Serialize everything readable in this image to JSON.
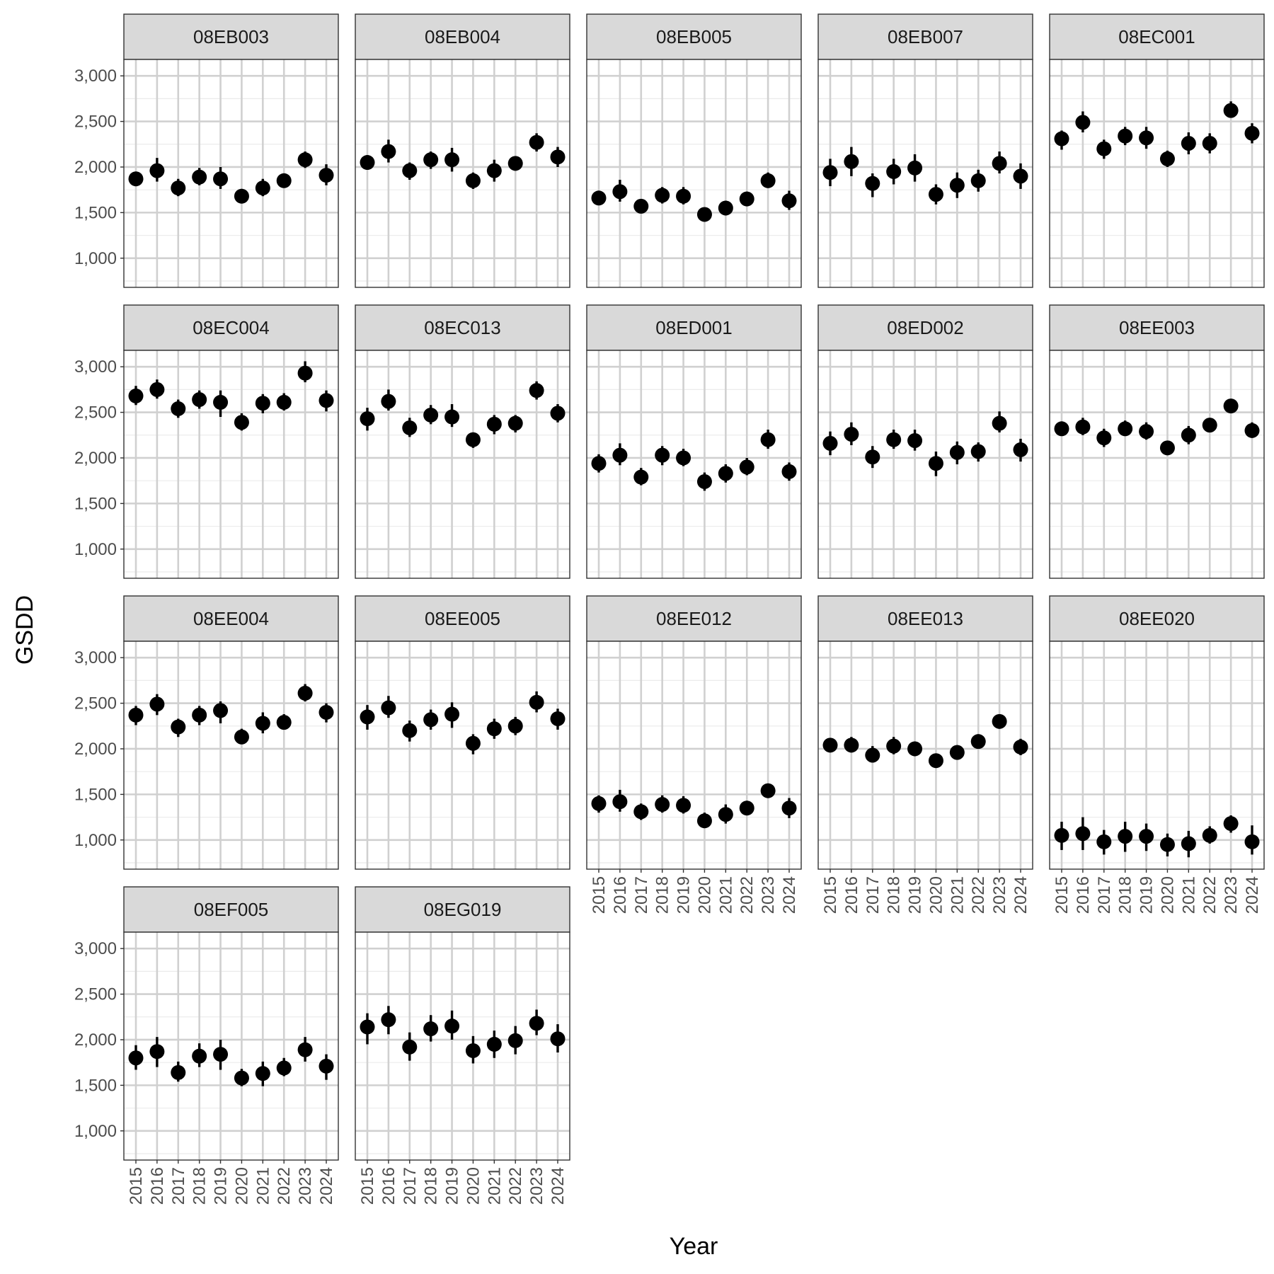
{
  "chart_data": {
    "type": "scatter",
    "xlabel": "Year",
    "ylabel": "GSDD",
    "x": [
      "2015",
      "2016",
      "2017",
      "2018",
      "2019",
      "2020",
      "2021",
      "2022",
      "2023",
      "2024"
    ],
    "y_ticks": [
      1000,
      1500,
      2000,
      2500,
      3000
    ],
    "y_tick_labels": [
      "1,000",
      "1,500",
      "2,000",
      "2,500",
      "3,000"
    ],
    "ylim": [
      680,
      3180
    ],
    "grid": true,
    "marker_color": "#000000",
    "panels": [
      {
        "name": "08EB003",
        "values": [
          1870,
          1960,
          1770,
          1890,
          1870,
          1680,
          1770,
          1850,
          2080,
          1910
        ],
        "lower": [
          1790,
          1840,
          1680,
          1800,
          1760,
          1600,
          1680,
          1780,
          1990,
          1800
        ],
        "upper": [
          1950,
          2100,
          1870,
          1990,
          2000,
          1760,
          1870,
          1930,
          2170,
          2030
        ]
      },
      {
        "name": "08EB004",
        "values": [
          2050,
          2170,
          1960,
          2080,
          2080,
          1850,
          1960,
          2040,
          2270,
          2110
        ],
        "lower": [
          1970,
          2050,
          1860,
          1980,
          1950,
          1760,
          1840,
          1960,
          2170,
          2000
        ],
        "upper": [
          2130,
          2300,
          2050,
          2170,
          2210,
          1940,
          2080,
          2120,
          2370,
          2220
        ]
      },
      {
        "name": "08EB005",
        "values": [
          1660,
          1730,
          1570,
          1690,
          1680,
          1480,
          1550,
          1650,
          1850,
          1630
        ],
        "lower": [
          1580,
          1620,
          1500,
          1600,
          1590,
          1420,
          1470,
          1580,
          1770,
          1530
        ],
        "upper": [
          1740,
          1860,
          1650,
          1780,
          1780,
          1550,
          1630,
          1730,
          1940,
          1740
        ]
      },
      {
        "name": "08EB007",
        "values": [
          1940,
          2060,
          1820,
          1950,
          1990,
          1700,
          1800,
          1850,
          2040,
          1900
        ],
        "lower": [
          1790,
          1900,
          1670,
          1810,
          1840,
          1590,
          1660,
          1730,
          1930,
          1760
        ],
        "upper": [
          2090,
          2220,
          1930,
          2090,
          2140,
          1810,
          1940,
          1970,
          2170,
          2040
        ]
      },
      {
        "name": "08EC001",
        "values": [
          2310,
          2490,
          2200,
          2340,
          2320,
          2090,
          2260,
          2260,
          2620,
          2370
        ],
        "lower": [
          2190,
          2380,
          2090,
          2240,
          2200,
          2000,
          2140,
          2150,
          2540,
          2260
        ],
        "upper": [
          2400,
          2610,
          2300,
          2440,
          2440,
          2180,
          2380,
          2370,
          2720,
          2480
        ]
      },
      {
        "name": "08EC004",
        "values": [
          2680,
          2750,
          2540,
          2640,
          2610,
          2390,
          2600,
          2610,
          2930,
          2630
        ],
        "lower": [
          2580,
          2650,
          2440,
          2540,
          2450,
          2300,
          2490,
          2520,
          2830,
          2510
        ],
        "upper": [
          2790,
          2860,
          2640,
          2740,
          2740,
          2490,
          2700,
          2710,
          3060,
          2740
        ]
      },
      {
        "name": "08EC013",
        "values": [
          2430,
          2620,
          2330,
          2470,
          2450,
          2200,
          2370,
          2380,
          2740,
          2490
        ],
        "lower": [
          2300,
          2520,
          2230,
          2370,
          2340,
          2110,
          2260,
          2280,
          2640,
          2390
        ],
        "upper": [
          2550,
          2750,
          2440,
          2580,
          2590,
          2280,
          2470,
          2470,
          2840,
          2590
        ]
      },
      {
        "name": "08ED001",
        "values": [
          1940,
          2030,
          1790,
          2030,
          2000,
          1740,
          1830,
          1900,
          2200,
          1850
        ],
        "lower": [
          1840,
          1920,
          1700,
          1920,
          1910,
          1640,
          1730,
          1810,
          2100,
          1750
        ],
        "upper": [
          2040,
          2160,
          1890,
          2130,
          2100,
          1840,
          1930,
          2000,
          2310,
          1950
        ]
      },
      {
        "name": "08ED002",
        "values": [
          2160,
          2260,
          2010,
          2200,
          2190,
          1940,
          2060,
          2070,
          2380,
          2090
        ],
        "lower": [
          2030,
          2140,
          1890,
          2100,
          2080,
          1800,
          1930,
          1960,
          2280,
          1960
        ],
        "upper": [
          2290,
          2390,
          2130,
          2310,
          2310,
          2070,
          2180,
          2170,
          2510,
          2210
        ]
      },
      {
        "name": "08EE003",
        "values": [
          2320,
          2340,
          2220,
          2320,
          2290,
          2110,
          2250,
          2360,
          2570,
          2300
        ],
        "lower": [
          2250,
          2250,
          2120,
          2240,
          2200,
          2040,
          2150,
          2280,
          2500,
          2220
        ],
        "upper": [
          2400,
          2440,
          2320,
          2410,
          2390,
          2180,
          2350,
          2430,
          2630,
          2390
        ]
      },
      {
        "name": "08EE004",
        "values": [
          2370,
          2490,
          2240,
          2370,
          2420,
          2130,
          2280,
          2290,
          2610,
          2400
        ],
        "lower": [
          2260,
          2370,
          2130,
          2260,
          2280,
          2050,
          2170,
          2210,
          2520,
          2290
        ],
        "upper": [
          2470,
          2600,
          2330,
          2470,
          2520,
          2220,
          2400,
          2380,
          2710,
          2500
        ]
      },
      {
        "name": "08EE005",
        "values": [
          2350,
          2450,
          2200,
          2320,
          2380,
          2060,
          2220,
          2250,
          2510,
          2330
        ],
        "lower": [
          2210,
          2340,
          2080,
          2210,
          2230,
          1940,
          2110,
          2150,
          2400,
          2210
        ],
        "upper": [
          2480,
          2580,
          2310,
          2430,
          2510,
          2160,
          2330,
          2350,
          2630,
          2440
        ]
      },
      {
        "name": "08EE012",
        "values": [
          1400,
          1420,
          1310,
          1390,
          1380,
          1210,
          1280,
          1350,
          1540,
          1350
        ],
        "lower": [
          1300,
          1310,
          1220,
          1300,
          1290,
          1140,
          1180,
          1270,
          1470,
          1240
        ],
        "upper": [
          1490,
          1550,
          1400,
          1490,
          1480,
          1300,
          1390,
          1430,
          1620,
          1460
        ]
      },
      {
        "name": "08EE013",
        "values": [
          2040,
          2040,
          1930,
          2030,
          2000,
          1870,
          1960,
          2080,
          2300,
          2020
        ],
        "lower": [
          1970,
          1960,
          1850,
          1940,
          1920,
          1800,
          1880,
          2000,
          2230,
          1930
        ],
        "upper": [
          2100,
          2130,
          2030,
          2130,
          2080,
          1930,
          2040,
          2150,
          2380,
          2110
        ]
      },
      {
        "name": "08EE020",
        "values": [
          1050,
          1070,
          980,
          1040,
          1040,
          950,
          960,
          1050,
          1180,
          980
        ],
        "lower": [
          890,
          890,
          840,
          870,
          880,
          820,
          810,
          960,
          1080,
          840
        ],
        "upper": [
          1200,
          1250,
          1110,
          1200,
          1180,
          1070,
          1100,
          1150,
          1270,
          1160
        ]
      },
      {
        "name": "08EF005",
        "values": [
          1800,
          1870,
          1640,
          1820,
          1840,
          1580,
          1630,
          1690,
          1890,
          1710
        ],
        "lower": [
          1670,
          1700,
          1540,
          1700,
          1670,
          1490,
          1490,
          1600,
          1760,
          1560
        ],
        "upper": [
          1940,
          2030,
          1760,
          1960,
          2000,
          1680,
          1760,
          1800,
          2030,
          1840
        ]
      },
      {
        "name": "08EG019",
        "values": [
          2140,
          2220,
          1920,
          2120,
          2150,
          1880,
          1950,
          1990,
          2180,
          2010
        ],
        "lower": [
          1950,
          2060,
          1770,
          1980,
          2000,
          1740,
          1800,
          1840,
          2050,
          1860
        ],
        "upper": [
          2290,
          2370,
          2080,
          2270,
          2320,
          2040,
          2100,
          2150,
          2330,
          2170
        ]
      }
    ]
  }
}
